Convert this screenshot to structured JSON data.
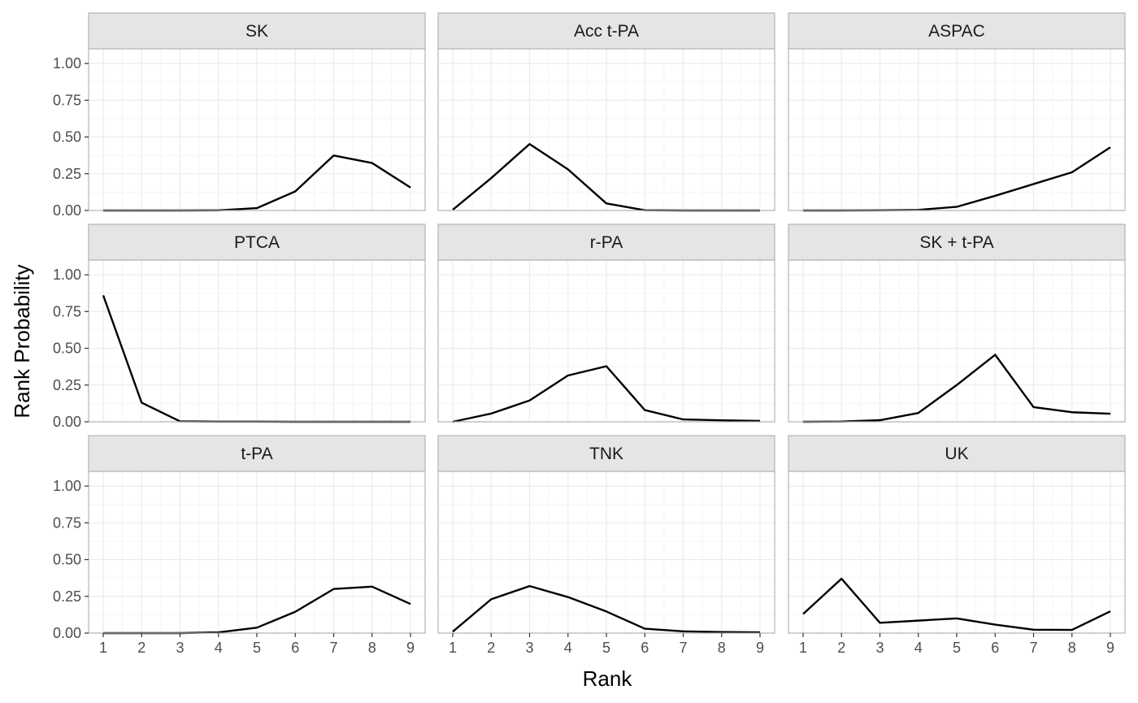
{
  "chart_data": {
    "type": "line",
    "xlabel": "Rank",
    "ylabel": "Rank Probability",
    "xlim": [
      1,
      9
    ],
    "ylim": [
      0,
      1.1
    ],
    "x_ticks": [
      "1",
      "2",
      "3",
      "4",
      "5",
      "6",
      "7",
      "8",
      "9"
    ],
    "y_ticks": [
      "0.00",
      "0.25",
      "0.50",
      "0.75",
      "1.00"
    ],
    "grid": true,
    "theme": {
      "panel_border": "#b3b3b3",
      "strip_fill": "#e5e5e5",
      "grid_major": "#ebebeb",
      "grid_minor": "#f5f5f5",
      "line": "#000000"
    },
    "x": [
      1,
      2,
      3,
      4,
      5,
      6,
      7,
      8,
      9
    ],
    "panels": [
      {
        "title": "SK",
        "values": [
          0.0,
          0.0,
          0.0,
          0.001,
          0.016,
          0.13,
          0.374,
          0.323,
          0.156
        ]
      },
      {
        "title": "Acc t-PA",
        "values": [
          0.005,
          0.22,
          0.452,
          0.28,
          0.048,
          0.002,
          0.0,
          0.0,
          0.0
        ]
      },
      {
        "title": "ASPAC",
        "values": [
          0.0,
          0.0,
          0.001,
          0.004,
          0.025,
          0.1,
          0.18,
          0.26,
          0.43
        ]
      },
      {
        "title": "PTCA",
        "values": [
          0.86,
          0.13,
          0.003,
          0.001,
          0.001,
          0.0,
          0.0,
          0.0,
          0.0
        ]
      },
      {
        "title": "r-PA",
        "values": [
          0.0,
          0.056,
          0.145,
          0.315,
          0.378,
          0.08,
          0.016,
          0.01,
          0.006
        ]
      },
      {
        "title": "SK + t-PA",
        "values": [
          0.0,
          0.002,
          0.011,
          0.06,
          0.25,
          0.456,
          0.1,
          0.065,
          0.055
        ]
      },
      {
        "title": "t-PA",
        "values": [
          0.0,
          0.0,
          0.0,
          0.005,
          0.037,
          0.145,
          0.3,
          0.316,
          0.198
        ]
      },
      {
        "title": "TNK",
        "values": [
          0.01,
          0.23,
          0.32,
          0.245,
          0.147,
          0.03,
          0.012,
          0.007,
          0.005
        ]
      },
      {
        "title": "UK",
        "values": [
          0.13,
          0.37,
          0.07,
          0.085,
          0.1,
          0.058,
          0.023,
          0.022,
          0.148
        ]
      }
    ]
  }
}
